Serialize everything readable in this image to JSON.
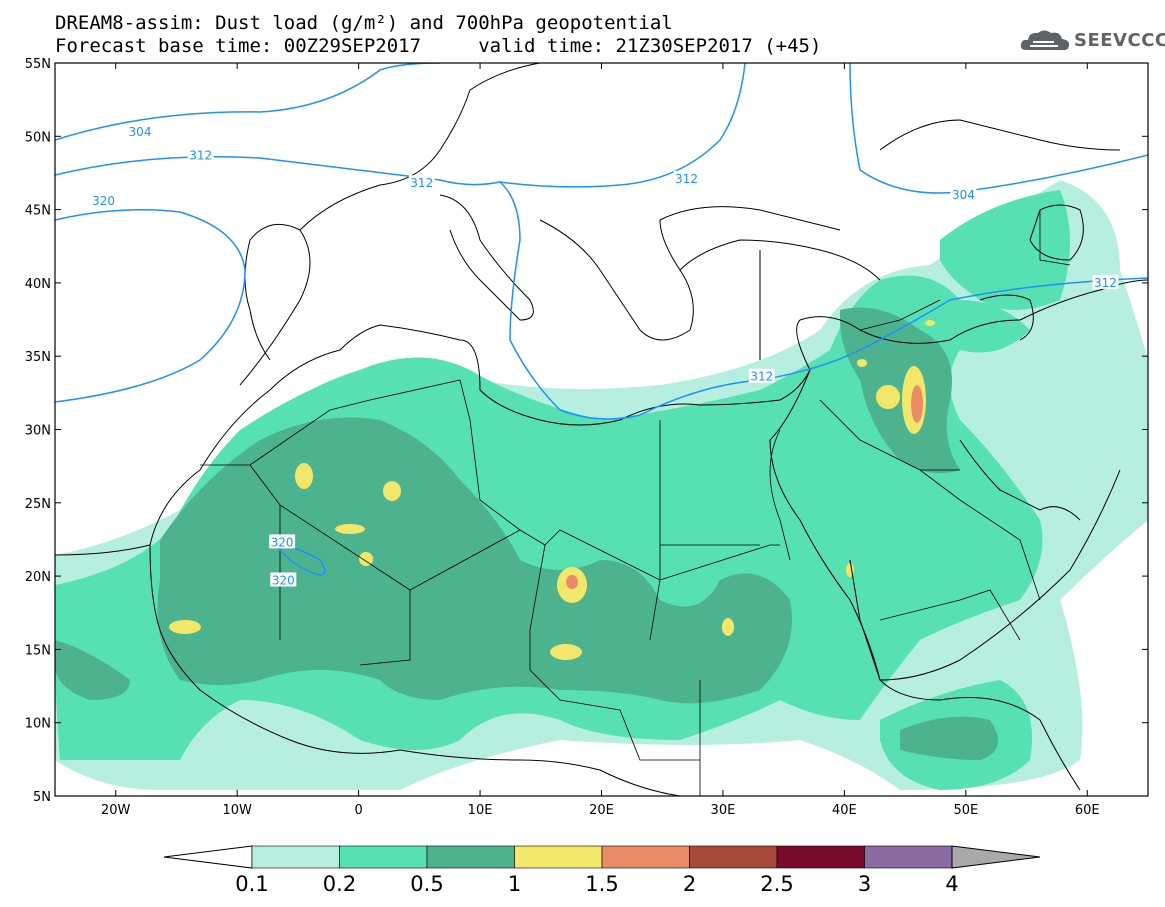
{
  "header": {
    "title_line1": "DREAM8-assim: Dust load (g/m²) and 700hPa geopotential",
    "title_line2": "Forecast base time: 00Z29SEP2017     valid time: 21Z30SEP2017 (+45)"
  },
  "logo": {
    "text": "SEEVCCC",
    "icon": "cloud-logo-icon",
    "color": "#5f6368"
  },
  "map": {
    "lon_range": [
      -25,
      65
    ],
    "lat_range": [
      5,
      55
    ],
    "lat_ticks": [
      "5N",
      "10N",
      "15N",
      "20N",
      "25N",
      "30N",
      "35N",
      "40N",
      "45N",
      "50N",
      "55N"
    ],
    "lon_ticks": [
      "20W",
      "10W",
      "0",
      "10E",
      "20E",
      "30E",
      "40E",
      "50E",
      "60E"
    ],
    "lon_tick_values": [
      -20,
      -10,
      0,
      10,
      20,
      30,
      40,
      50,
      60
    ],
    "lat_tick_values": [
      5,
      10,
      15,
      20,
      25,
      30,
      35,
      40,
      45,
      50,
      55
    ],
    "contour_color": "#1e90ff",
    "contour_labels": [
      {
        "text": "304",
        "lon": -18,
        "lat": 50.3
      },
      {
        "text": "312",
        "lon": -13,
        "lat": 48.7
      },
      {
        "text": "320",
        "lon": -21,
        "lat": 45.6
      },
      {
        "text": "312",
        "lon": 5.2,
        "lat": 46.8
      },
      {
        "text": "312",
        "lon": 27,
        "lat": 47.1
      },
      {
        "text": "312",
        "lon": 33.2,
        "lat": 33.6
      },
      {
        "text": "304",
        "lon": 49.8,
        "lat": 46
      },
      {
        "text": "312",
        "lon": 61.5,
        "lat": 40
      },
      {
        "text": "320",
        "lon": -6.3,
        "lat": 22.3
      },
      {
        "text": "320",
        "lon": -6.2,
        "lat": 19.7
      }
    ]
  },
  "colorbar": {
    "labels": [
      "0.1",
      "0.2",
      "0.5",
      "1",
      "1.5",
      "2",
      "2.5",
      "3",
      "4"
    ],
    "colors": [
      "#b6eee0",
      "#57e0b1",
      "#4db38f",
      "#f2e66b",
      "#e98c66",
      "#a84a3a",
      "#7a0b2d",
      "#8c6aa2"
    ],
    "below_color": "#ffffff",
    "above_color": "#a9a9a9"
  }
}
